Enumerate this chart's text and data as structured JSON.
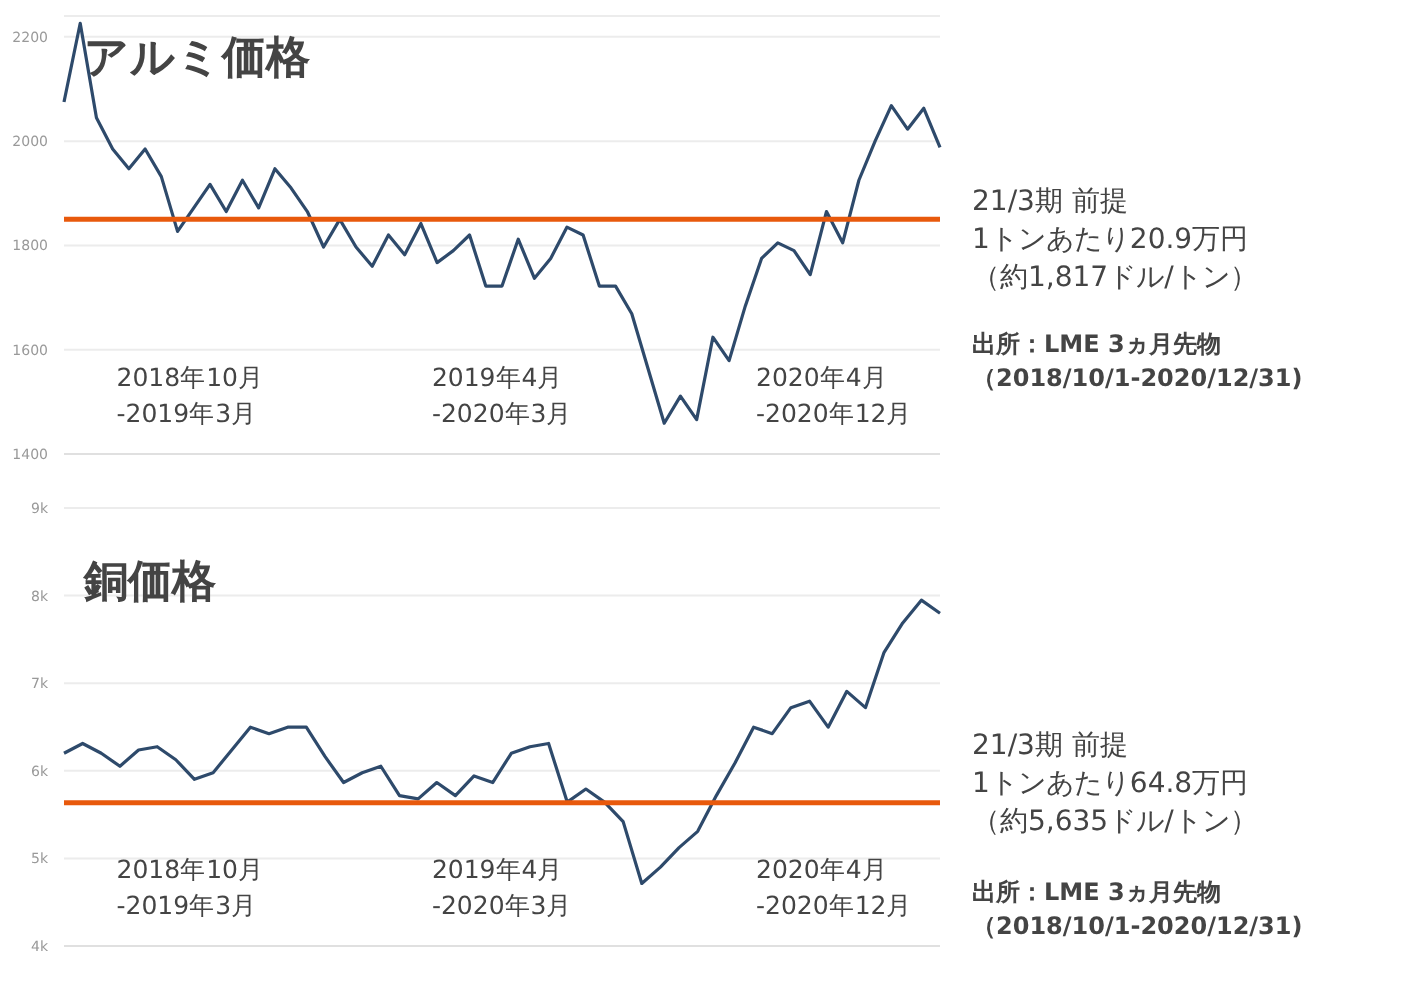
{
  "chart_data": [
    {
      "type": "line",
      "title": "アルミ価格",
      "categories": [
        null,
        null,
        null,
        null,
        null,
        null,
        null,
        null,
        null,
        null,
        null,
        null,
        null,
        null,
        null,
        null,
        null,
        null,
        null,
        null,
        null,
        null,
        null,
        null,
        null,
        null,
        null,
        null,
        null,
        null,
        null,
        null,
        null,
        null,
        null,
        null,
        null,
        null,
        null,
        null,
        null,
        null,
        null,
        null,
        null,
        null,
        null,
        null,
        null,
        null,
        null,
        null,
        null,
        null,
        null
      ],
      "series": [
        {
          "color": "#2e4a6b",
          "values": [
            2075,
            2226,
            2045,
            1985,
            1947,
            1985,
            1932,
            1827,
            1872,
            1917,
            1865,
            1925,
            1872,
            1947,
            1910,
            1865,
            1797,
            1850,
            1797,
            1760,
            1820,
            1782,
            1842,
            1767,
            1790,
            1820,
            1722,
            1722,
            1812,
            1737,
            1775,
            1835,
            1820,
            1722,
            1722,
            1669,
            1564,
            1459,
            1511,
            1466,
            1624,
            1579,
            1684,
            1775,
            1805,
            1790,
            1744,
            1865,
            1805,
            1925,
            2000,
            2068,
            2023,
            2063,
            1988
          ]
        }
      ],
      "ylim": [
        1400,
        2240
      ],
      "yticks": [
        1400,
        1600,
        1800,
        2000,
        2200
      ],
      "grid": "y",
      "tick_labels": "y",
      "legend": false,
      "marker": "none",
      "line_style": "solid",
      "ref_lines": [
        {
          "axis": "y",
          "value": 1850,
          "color": "#e8590c"
        }
      ],
      "annotations": [
        "2018年10月\n-2019年3月",
        "2019年4月\n-2020年3月",
        "2020年4月\n-2020年12月",
        "21/3期 前提",
        "1トンあたり20.9万円",
        "（約1,817ドル/トン）",
        "出所：LME 3ヵ月先物",
        "（2018/10/1-2020/12/31)"
      ]
    },
    {
      "type": "line",
      "title": "銅価格",
      "categories": [
        null,
        null,
        null,
        null,
        null,
        null,
        null,
        null,
        null,
        null,
        null,
        null,
        null,
        null,
        null,
        null,
        null,
        null,
        null,
        null,
        null,
        null,
        null,
        null,
        null,
        null,
        null,
        null,
        null,
        null,
        null,
        null,
        null,
        null,
        null,
        null,
        null,
        null,
        null,
        null,
        null,
        null,
        null,
        null,
        null,
        null,
        null,
        null
      ],
      "series": [
        {
          "color": "#2e4a6b",
          "values": [
            6200,
            6312,
            6200,
            6052,
            6238,
            6275,
            6126,
            5903,
            5978,
            6238,
            6498,
            6424,
            6498,
            6498,
            6164,
            5866,
            5978,
            6052,
            5717,
            5680,
            5866,
            5717,
            5941,
            5866,
            6200,
            6275,
            6312,
            5643,
            5792,
            5643,
            5420,
            4714,
            4900,
            5123,
            5309,
            5717,
            6089,
            6498,
            6424,
            6721,
            6795,
            6498,
            6907,
            6721,
            7353,
            7688,
            7948,
            7799
          ]
        }
      ],
      "ylim": [
        4000,
        9000
      ],
      "yticks": [
        {
          "value": 4000,
          "label": "4k"
        },
        {
          "value": 5000,
          "label": "5k"
        },
        {
          "value": 6000,
          "label": "6k"
        },
        {
          "value": 7000,
          "label": "7k"
        },
        {
          "value": 8000,
          "label": "8k"
        },
        {
          "value": 9000,
          "label": "9k"
        }
      ],
      "grid": "y",
      "tick_labels": "y",
      "legend": false,
      "marker": "none",
      "line_style": "solid",
      "ref_lines": [
        {
          "axis": "y",
          "value": 5635,
          "color": "#e8590c"
        }
      ],
      "annotations": [
        "2018年10月\n-2019年3月",
        "2019年4月\n-2020年3月",
        "2020年4月\n-2020年12月",
        "21/3期 前提",
        "1トンあたり64.8万円",
        "（約5,635ドル/トン）",
        "出所：LME 3ヵ月先物",
        "（2018/10/1-2020/12/31)"
      ]
    }
  ]
}
